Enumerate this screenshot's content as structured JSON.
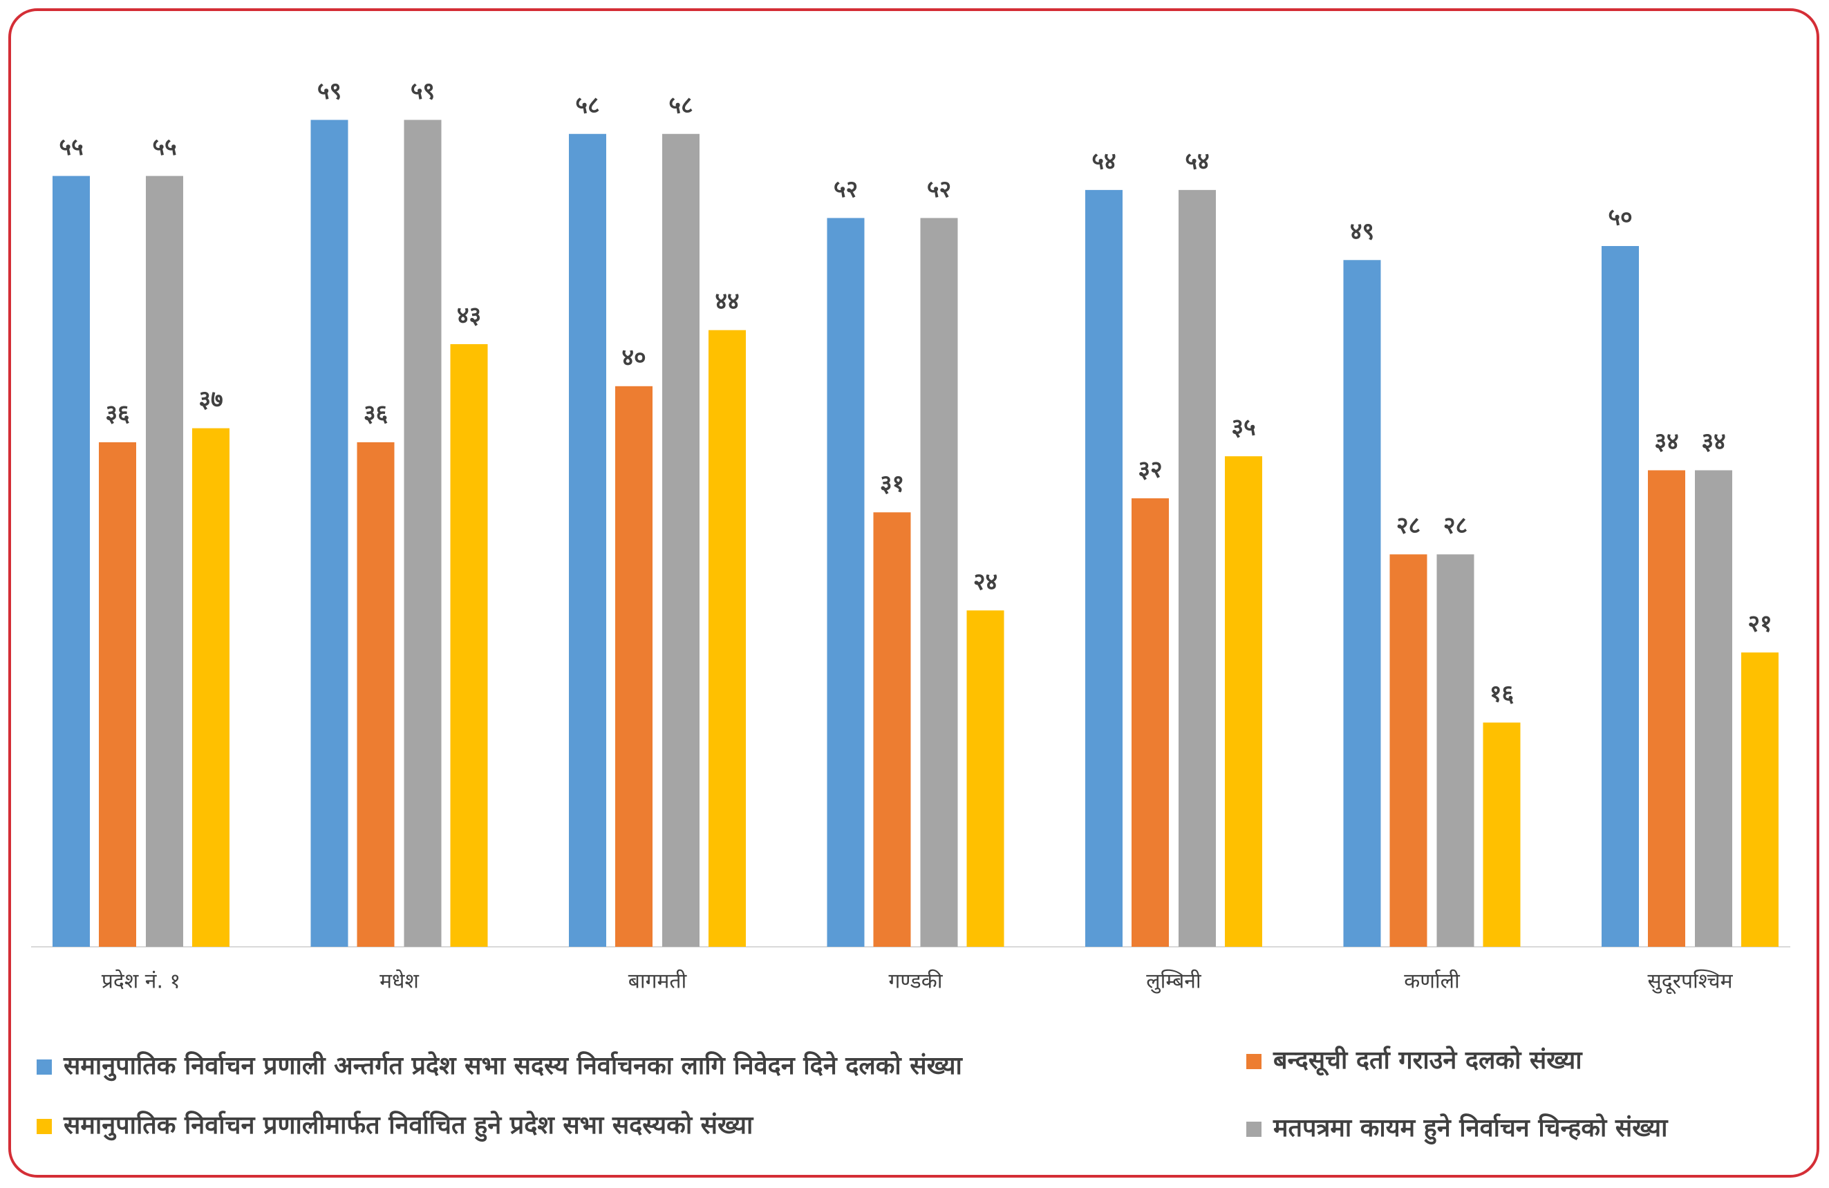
{
  "chart_data": {
    "type": "bar",
    "categories": [
      "प्रदेश नं. १",
      "मधेश",
      "बागमती",
      "गण्डकी",
      "लुम्बिनी",
      "कर्णाली",
      "सुदूरपश्चिम"
    ],
    "series": [
      {
        "name": "समानुपातिक निर्वाचन प्रणाली अन्तर्गत प्रदेश सभा सदस्य निर्वाचनका लागि निवेदन दिने दलको संख्या",
        "color": "#5b9bd5",
        "values": [
          55,
          59,
          58,
          52,
          54,
          49,
          50
        ],
        "value_labels": [
          "५५",
          "५९",
          "५८",
          "५२",
          "५४",
          "४९",
          "५०"
        ]
      },
      {
        "name": "बन्दसूची दर्ता गराउने दलको संख्या",
        "color": "#ed7d31",
        "values": [
          36,
          36,
          40,
          31,
          32,
          28,
          34
        ],
        "value_labels": [
          "३६",
          "३६",
          "४०",
          "३१",
          "३२",
          "२८",
          "३४"
        ]
      },
      {
        "name": "मतपत्रमा कायम हुने निर्वाचन चिन्हको संख्या",
        "color": "#a5a5a5",
        "values": [
          55,
          59,
          58,
          52,
          54,
          28,
          34
        ],
        "value_labels": [
          "५५",
          "५९",
          "५८",
          "५२",
          "५४",
          "२८",
          "३४"
        ]
      },
      {
        "name": "समानुपातिक निर्वाचन प्रणालीमार्फत निर्वाचित हुने प्रदेश सभा सदस्यको संख्या",
        "color": "#ffc000",
        "values": [
          37,
          43,
          44,
          24,
          35,
          16,
          21
        ],
        "value_labels": [
          "३७",
          "४३",
          "४४",
          "२४",
          "३५",
          "१६",
          "२१"
        ]
      }
    ]
  }
}
